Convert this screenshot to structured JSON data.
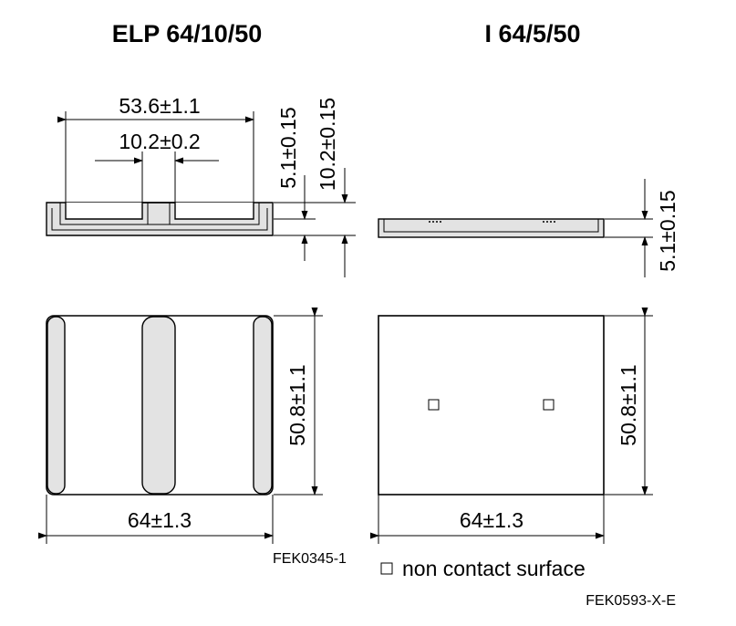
{
  "left_part": {
    "title": "ELP 64/10/50",
    "dim_width_outer": "53.6±1.1",
    "dim_center_leg": "10.2±0.2",
    "dim_height_leg": "5.1±0.15",
    "dim_height_total": "10.2±0.15",
    "dim_length": "50.8±1.1",
    "dim_width": "64±1.3",
    "drawing_code": "FEK0345-1"
  },
  "right_part": {
    "title": "I 64/5/50",
    "dim_thickness": "5.1±0.15",
    "dim_length": "50.8±1.1",
    "dim_width": "64±1.3"
  },
  "legend": {
    "symbol": "square-outline",
    "label": "non contact surface"
  },
  "drawing_code": "FEK0593-X-E"
}
